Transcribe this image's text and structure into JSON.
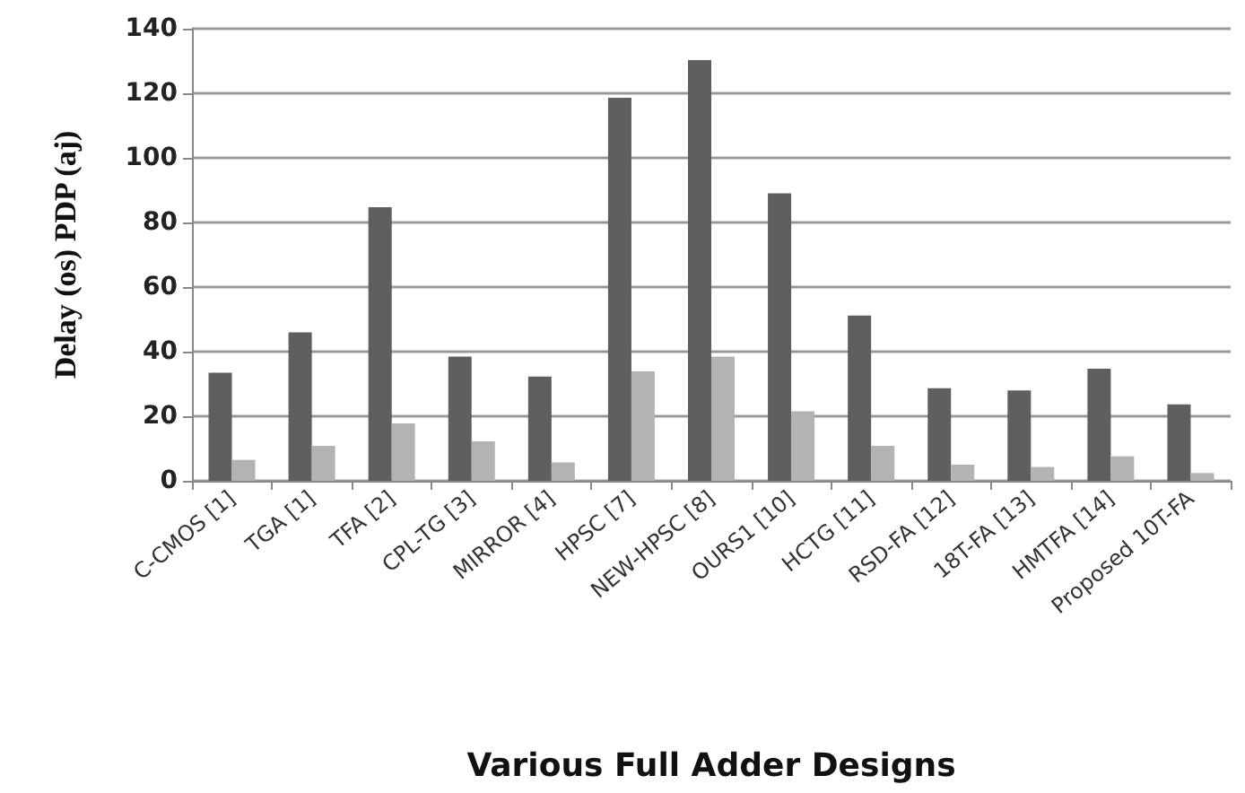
{
  "chart_data": {
    "type": "bar",
    "xlabel": "Various Full Adder Designs",
    "ylabel": "Delay (os) PDP (aj)",
    "categories": [
      "C-CMOS [1]",
      "TGA [1]",
      "TFA [2]",
      "CPL-TG [3]",
      "MIRROR [4]",
      "HPSC [7]",
      "NEW-HPSC [8]",
      "OURS1 [10]",
      "HCTG [11]",
      "RSD-FA [12]",
      "18T-FA [13]",
      "HMTFA [14]",
      "Proposed 10T-FA"
    ],
    "series": [
      {
        "color": "#5f5f5f",
        "values": [
          33.5,
          46,
          84.7,
          38.5,
          32.3,
          118.6,
          130.3,
          89,
          51.2,
          28.7,
          28,
          34.7,
          23.7
        ]
      },
      {
        "color": "#b3b3b3",
        "values": [
          6.5,
          10.8,
          17.8,
          12.2,
          5.7,
          33.9,
          38.5,
          21.5,
          10.8,
          5,
          4.3,
          7.6,
          2.4
        ]
      }
    ],
    "ylim": [
      0,
      140
    ],
    "yticks": [
      0,
      20,
      40,
      60,
      80,
      100,
      120,
      140
    ],
    "grid": "y"
  }
}
